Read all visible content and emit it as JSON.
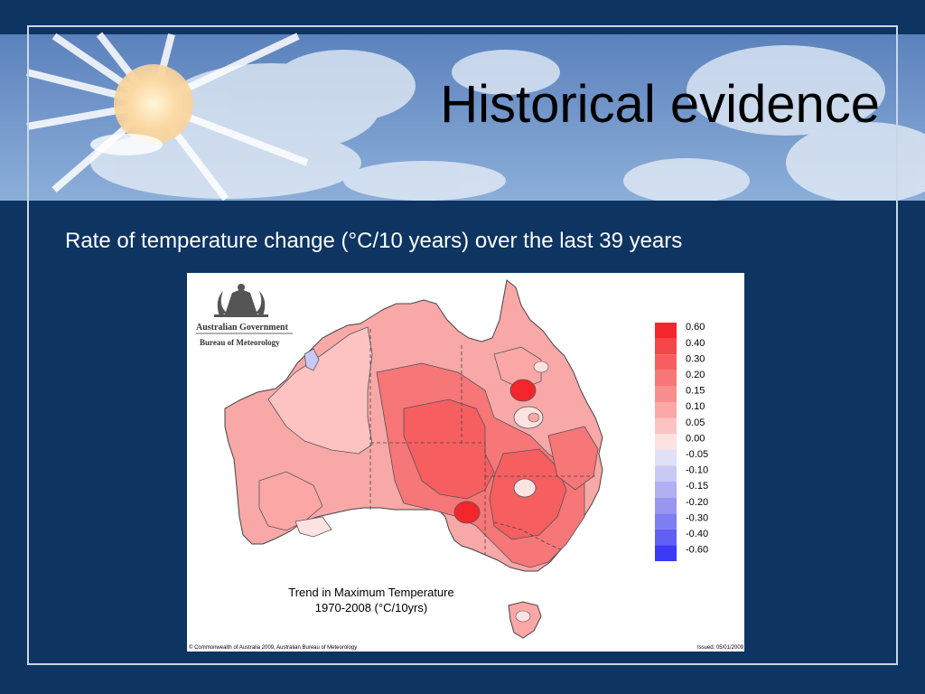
{
  "slide": {
    "title": "Historical evidence",
    "subtitle": "Rate of temperature change (°C/10 years) over the last 39 years"
  },
  "map": {
    "agency_line1": "Australian Government",
    "agency_line2": "Bureau of Meteorology",
    "map_title_line1": "Trend in Maximum Temperature",
    "map_title_line2": "1970-2008 (°C/10yrs)",
    "copyright": "© Commonwealth of Australia 2009, Australian Bureau of Meteorology",
    "issued": "Issued: 05/01/2009",
    "legend": [
      {
        "label": "0.60",
        "color": "#f4262b"
      },
      {
        "label": "0.40",
        "color": "#f54649"
      },
      {
        "label": "0.30",
        "color": "#f65e60"
      },
      {
        "label": "0.20",
        "color": "#f77677"
      },
      {
        "label": "0.15",
        "color": "#f98e8e"
      },
      {
        "label": "0.10",
        "color": "#fba7a6"
      },
      {
        "label": "0.05",
        "color": "#fdc3c2"
      },
      {
        "label": "0.00",
        "color": "#fde2e2"
      },
      {
        "label": "-0.05",
        "color": "#e0e0f8"
      },
      {
        "label": "-0.10",
        "color": "#c9c9f5"
      },
      {
        "label": "-0.15",
        "color": "#b0b0f3"
      },
      {
        "label": "-0.20",
        "color": "#9797f2"
      },
      {
        "label": "-0.30",
        "color": "#7e7ef3"
      },
      {
        "label": "-0.40",
        "color": "#6060f5"
      },
      {
        "label": "-0.60",
        "color": "#3a3af7"
      }
    ]
  },
  "colors": {
    "background": "#0e3462",
    "sky": "#6f95c8",
    "frame": "#c9d6e6"
  }
}
